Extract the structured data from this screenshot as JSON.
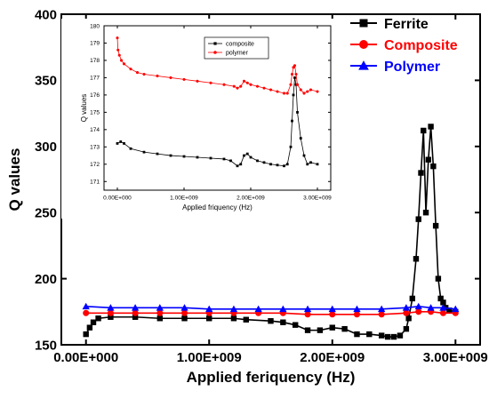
{
  "chart_data": [
    {
      "type": "line",
      "xlabel": "Applied feriquency (Hz)",
      "ylabel": "Q values",
      "xlim": [
        -200000000.0,
        3200000000.0
      ],
      "ylim": [
        150,
        400
      ],
      "x_ticks": [
        0,
        1000000000.0,
        2000000000.0,
        3000000000.0
      ],
      "x_tick_labels": [
        "0.00E+000",
        "1.00E+009",
        "2.00E+009",
        "3.00E+009"
      ],
      "y_ticks": [
        150,
        200,
        250,
        300,
        350,
        400
      ],
      "y_tick_labels": [
        "150",
        "200",
        "250",
        "300",
        "350",
        "400"
      ],
      "legend_position": "top-right",
      "series": [
        {
          "name": "Ferrite",
          "color": "#000000",
          "marker": "square",
          "x": [
            0,
            30000000.0,
            60000000.0,
            100000000.0,
            200000000.0,
            400000000.0,
            600000000.0,
            800000000.0,
            1000000000.0,
            1200000000.0,
            1300000000.0,
            1500000000.0,
            1600000000.0,
            1700000000.0,
            1800000000.0,
            1900000000.0,
            2000000000.0,
            2100000000.0,
            2200000000.0,
            2300000000.0,
            2400000000.0,
            2450000000.0,
            2500000000.0,
            2550000000.0,
            2600000000.0,
            2620000000.0,
            2650000000.0,
            2680000000.0,
            2700000000.0,
            2720000000.0,
            2740000000.0,
            2760000000.0,
            2780000000.0,
            2800000000.0,
            2820000000.0,
            2840000000.0,
            2860000000.0,
            2880000000.0,
            2900000000.0,
            2920000000.0,
            2950000000.0,
            3000000000.0
          ],
          "y": [
            158,
            163,
            167,
            170,
            171,
            171,
            170,
            170,
            170,
            170,
            169,
            168,
            167,
            165,
            161,
            161,
            163,
            162,
            158,
            158,
            157,
            156,
            156,
            157,
            162,
            170,
            185,
            215,
            245,
            280,
            312,
            250,
            290,
            315,
            285,
            240,
            200,
            185,
            182,
            178,
            176,
            175
          ]
        },
        {
          "name": "Composite",
          "color": "#ff0000",
          "marker": "circle",
          "x": [
            0,
            200000000.0,
            400000000.0,
            600000000.0,
            800000000.0,
            1000000000.0,
            1200000000.0,
            1400000000.0,
            1600000000.0,
            1800000000.0,
            2000000000.0,
            2200000000.0,
            2400000000.0,
            2600000000.0,
            2700000000.0,
            2800000000.0,
            2900000000.0,
            3000000000.0
          ],
          "y": [
            174,
            174,
            174,
            174,
            174,
            174,
            174,
            174,
            174,
            173,
            173,
            173,
            173,
            174,
            175,
            175,
            174,
            174
          ]
        },
        {
          "name": "Polymer",
          "color": "#0000ff",
          "marker": "triangle",
          "x": [
            0,
            200000000.0,
            400000000.0,
            600000000.0,
            800000000.0,
            1000000000.0,
            1200000000.0,
            1400000000.0,
            1600000000.0,
            1800000000.0,
            2000000000.0,
            2200000000.0,
            2400000000.0,
            2600000000.0,
            2700000000.0,
            2800000000.0,
            2900000000.0,
            3000000000.0
          ],
          "y": [
            179,
            178,
            178,
            178,
            178,
            177,
            177,
            177,
            177,
            177,
            177,
            177,
            177,
            178,
            179,
            178,
            178,
            177
          ]
        }
      ]
    },
    {
      "type": "line",
      "xlabel": "Applied friquency (Hz)",
      "ylabel": "Q values",
      "xlim": [
        -200000000.0,
        3200000000.0
      ],
      "ylim": [
        170.5,
        180
      ],
      "x_ticks": [
        0,
        1000000000.0,
        2000000000.0,
        3000000000.0
      ],
      "x_tick_labels": [
        "0.00E+000",
        "1.00E+009",
        "2.00E+009",
        "3.00E+009"
      ],
      "y_ticks": [
        171,
        172,
        173,
        174,
        175,
        176,
        177,
        178,
        179,
        180
      ],
      "y_tick_labels": [
        "171",
        "172",
        "173",
        "174",
        "175",
        "176",
        "177",
        "178",
        "179",
        "180"
      ],
      "legend_position": "top-center",
      "series": [
        {
          "name": "composite",
          "color": "#000000",
          "marker": "square",
          "x": [
            0,
            50000000.0,
            100000000.0,
            200000000.0,
            400000000.0,
            600000000.0,
            800000000.0,
            1000000000.0,
            1200000000.0,
            1400000000.0,
            1600000000.0,
            1700000000.0,
            1800000000.0,
            1850000000.0,
            1900000000.0,
            1950000000.0,
            2000000000.0,
            2100000000.0,
            2200000000.0,
            2300000000.0,
            2400000000.0,
            2500000000.0,
            2550000000.0,
            2600000000.0,
            2620000000.0,
            2640000000.0,
            2660000000.0,
            2680000000.0,
            2700000000.0,
            2750000000.0,
            2800000000.0,
            2850000000.0,
            2900000000.0,
            3000000000.0
          ],
          "y": [
            173.2,
            173.3,
            173.2,
            172.9,
            172.7,
            172.6,
            172.5,
            172.45,
            172.4,
            172.35,
            172.3,
            172.2,
            171.9,
            172.0,
            172.5,
            172.6,
            172.4,
            172.2,
            172.1,
            172.0,
            171.95,
            171.9,
            172.0,
            173.0,
            174.5,
            176.0,
            177.0,
            176.6,
            175.0,
            173.5,
            172.5,
            172.0,
            172.1,
            172.0
          ]
        },
        {
          "name": "polymer",
          "color": "#ff0000",
          "marker": "circle",
          "x": [
            0,
            10000000.0,
            30000000.0,
            60000000.0,
            100000000.0,
            200000000.0,
            300000000.0,
            400000000.0,
            600000000.0,
            800000000.0,
            1000000000.0,
            1200000000.0,
            1400000000.0,
            1600000000.0,
            1750000000.0,
            1800000000.0,
            1850000000.0,
            1900000000.0,
            1950000000.0,
            2000000000.0,
            2100000000.0,
            2200000000.0,
            2300000000.0,
            2400000000.0,
            2500000000.0,
            2550000000.0,
            2600000000.0,
            2620000000.0,
            2640000000.0,
            2660000000.0,
            2680000000.0,
            2700000000.0,
            2750000000.0,
            2800000000.0,
            2850000000.0,
            2900000000.0,
            3000000000.0
          ],
          "y": [
            179.3,
            178.6,
            178.3,
            178.0,
            177.8,
            177.5,
            177.3,
            177.2,
            177.1,
            177.0,
            176.9,
            176.8,
            176.7,
            176.6,
            176.5,
            176.4,
            176.5,
            176.8,
            176.7,
            176.6,
            176.5,
            176.4,
            176.3,
            176.2,
            176.1,
            176.1,
            176.6,
            177.2,
            177.6,
            177.7,
            177.2,
            176.6,
            176.3,
            176.1,
            176.2,
            176.3,
            176.2
          ]
        }
      ]
    }
  ]
}
